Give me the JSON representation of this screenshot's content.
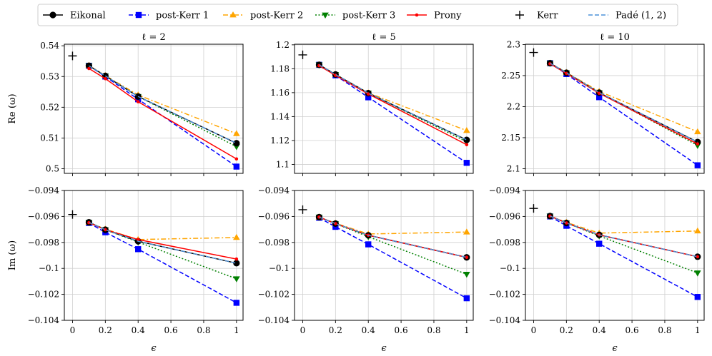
{
  "chart_data": {
    "type": "line",
    "figure_kind": "grid of 2x3 line plots",
    "xlabel": "ϵ",
    "row_ylabels": [
      "Re (ω)",
      "Im (ω)"
    ],
    "column_titles": [
      "ℓ = 2",
      "ℓ = 5",
      "ℓ = 10"
    ],
    "x_ticks": [
      "0",
      "0.2",
      "0.4",
      "0.6",
      "0.8",
      "1"
    ],
    "xlim": [
      -0.05,
      1.04
    ],
    "x": [
      0.1,
      0.2,
      0.4,
      1.0
    ],
    "legend": {
      "placement": "top",
      "entries": [
        {
          "name": "Eikonal",
          "color": "#000000",
          "marker": "circle",
          "dash": "solid"
        },
        {
          "name": "post-Kerr 1",
          "color": "#0000ff",
          "marker": "square",
          "dash": "dashed"
        },
        {
          "name": "post-Kerr 2",
          "color": "#ffa500",
          "marker": "triangle-up",
          "dash": "dashdot"
        },
        {
          "name": "post-Kerr 3",
          "color": "#008000",
          "marker": "triangle-down",
          "dash": "dotted"
        },
        {
          "name": "Prony",
          "color": "#ff0000",
          "marker": "dot",
          "dash": "solid"
        },
        {
          "name": "Kerr",
          "color": "#000000",
          "marker": "plus",
          "dash": "none"
        },
        {
          "name": "Padé (1, 2)",
          "color": "#4a90d9",
          "marker": "none",
          "dash": "dashed"
        }
      ]
    },
    "panels": [
      {
        "title": "ℓ = 2",
        "quantity": "Re (ω)",
        "ylim": [
          0.4985,
          0.5405
        ],
        "y_ticks": [
          0.5,
          0.51,
          0.52,
          0.53,
          0.54
        ],
        "y_tick_labels": [
          "0.5",
          "0.51",
          "0.52",
          "0.53",
          "0.54"
        ],
        "kerr": {
          "x": 0.0,
          "y": 0.5367
        },
        "series": [
          {
            "name": "Eikonal",
            "values": [
              0.5335,
              0.5302,
              0.5235,
              0.5083
            ]
          },
          {
            "name": "post-Kerr 1",
            "values": [
              0.5335,
              0.53,
              0.5226,
              0.5007
            ]
          },
          {
            "name": "post-Kerr 2",
            "values": [
              0.5336,
              0.5303,
              0.524,
              0.5114
            ]
          },
          {
            "name": "post-Kerr 3",
            "values": [
              0.5335,
              0.5302,
              0.5235,
              0.5072
            ]
          },
          {
            "name": "Prony",
            "values": [
              0.5326,
              0.5293,
              0.5218,
              0.5032
            ]
          },
          {
            "name": "Padé (1, 2)",
            "values": [
              0.5335,
              0.5302,
              0.5235,
              0.5083
            ]
          }
        ]
      },
      {
        "title": "ℓ = 5",
        "quantity": "Re (ω)",
        "ylim": [
          1.0925,
          1.2005
        ],
        "y_ticks": [
          1.1,
          1.12,
          1.14,
          1.16,
          1.18,
          1.2
        ],
        "y_tick_labels": [
          "1.1",
          "1.12",
          "1.14",
          "1.16",
          "1.18",
          "1.2"
        ],
        "kerr": {
          "x": 0.0,
          "y": 1.1916
        },
        "series": [
          {
            "name": "Eikonal",
            "values": [
              1.1833,
              1.1752,
              1.1596,
              1.1205
            ]
          },
          {
            "name": "post-Kerr 1",
            "values": [
              1.1833,
              1.1745,
              1.1561,
              1.1013
            ]
          },
          {
            "name": "post-Kerr 2",
            "values": [
              1.1833,
              1.1753,
              1.1598,
              1.1283
            ]
          },
          {
            "name": "post-Kerr 3",
            "values": [
              1.1833,
              1.1752,
              1.1596,
              1.119
            ]
          },
          {
            "name": "Prony",
            "values": [
              1.1826,
              1.1745,
              1.1589,
              1.1165
            ]
          },
          {
            "name": "Padé (1, 2)",
            "values": [
              1.1833,
              1.1752,
              1.1596,
              1.1205
            ]
          }
        ]
      },
      {
        "title": "ℓ = 10",
        "quantity": "Re (ω)",
        "ylim": [
          2.0925,
          2.3005
        ],
        "y_ticks": [
          2.1,
          2.15,
          2.2,
          2.25,
          2.3
        ],
        "y_tick_labels": [
          "2.1",
          "2.15",
          "2.2",
          "2.25",
          "2.3"
        ],
        "kerr": {
          "x": 0.0,
          "y": 2.2872
        },
        "series": [
          {
            "name": "Eikonal",
            "values": [
              2.27,
              2.2545,
              2.2225,
              2.143
            ]
          },
          {
            "name": "post-Kerr 1",
            "values": [
              2.27,
              2.2525,
              2.2152,
              2.1055
            ]
          },
          {
            "name": "post-Kerr 2",
            "values": [
              2.27,
              2.255,
              2.2245,
              2.1595
            ]
          },
          {
            "name": "post-Kerr 3",
            "values": [
              2.27,
              2.2545,
              2.2225,
              2.1375
            ]
          },
          {
            "name": "Prony",
            "values": [
              2.269,
              2.2535,
              2.2215,
              2.14
            ]
          },
          {
            "name": "Padé (1, 2)",
            "values": [
              2.27,
              2.2545,
              2.2225,
              2.143
            ]
          }
        ]
      },
      {
        "title": "ℓ = 2",
        "quantity": "Im (ω)",
        "ylim": [
          -0.104,
          -0.094
        ],
        "y_ticks": [
          -0.104,
          -0.102,
          -0.1,
          -0.098,
          -0.096,
          -0.094
        ],
        "y_tick_labels": [
          "−0.104",
          "−0.102",
          "−0.1",
          "−0.098",
          "−0.096",
          "−0.094"
        ],
        "kerr": {
          "x": 0.0,
          "y": -0.09585
        },
        "series": [
          {
            "name": "Eikonal",
            "values": [
              -0.09645,
              -0.09702,
              -0.09791,
              -0.0996
            ]
          },
          {
            "name": "post-Kerr 1",
            "values": [
              -0.0965,
              -0.09722,
              -0.09852,
              -0.10265
            ]
          },
          {
            "name": "post-Kerr 2",
            "values": [
              -0.09645,
              -0.09698,
              -0.09778,
              -0.09762
            ]
          },
          {
            "name": "post-Kerr 3",
            "values": [
              -0.09645,
              -0.09702,
              -0.09797,
              -0.1008
            ]
          },
          {
            "name": "Prony",
            "values": [
              -0.09648,
              -0.09702,
              -0.09778,
              -0.09928
            ]
          },
          {
            "name": "Padé (1, 2)",
            "values": [
              -0.09645,
              -0.09702,
              -0.09791,
              -0.0996
            ]
          }
        ]
      },
      {
        "title": "ℓ = 5",
        "quantity": "Im (ω)",
        "ylim": [
          -0.104,
          -0.094
        ],
        "y_ticks": [
          -0.104,
          -0.102,
          -0.1,
          -0.098,
          -0.096,
          -0.094
        ],
        "y_tick_labels": [
          "−0.104",
          "−0.102",
          "−0.1",
          "−0.098",
          "−0.096",
          "−0.094"
        ],
        "kerr": {
          "x": 0.0,
          "y": -0.09548
        },
        "series": [
          {
            "name": "Eikonal",
            "values": [
              -0.09605,
              -0.09655,
              -0.09745,
              -0.09915
            ]
          },
          {
            "name": "post-Kerr 1",
            "values": [
              -0.0961,
              -0.0968,
              -0.09815,
              -0.1023
            ]
          },
          {
            "name": "post-Kerr 2",
            "values": [
              -0.09605,
              -0.09652,
              -0.09735,
              -0.0972
            ]
          },
          {
            "name": "post-Kerr 3",
            "values": [
              -0.09605,
              -0.09656,
              -0.09756,
              -0.10045
            ]
          },
          {
            "name": "Prony",
            "values": [
              -0.09605,
              -0.09655,
              -0.09745,
              -0.09915
            ]
          },
          {
            "name": "Padé (1, 2)",
            "values": [
              -0.09605,
              -0.09655,
              -0.09745,
              -0.09915
            ]
          }
        ]
      },
      {
        "title": "ℓ = 10",
        "quantity": "Im (ω)",
        "ylim": [
          -0.104,
          -0.094
        ],
        "y_ticks": [
          -0.104,
          -0.102,
          -0.1,
          -0.098,
          -0.096,
          -0.094
        ],
        "y_tick_labels": [
          "−0.104",
          "−0.102",
          "−0.1",
          "−0.098",
          "−0.096",
          "−0.094"
        ],
        "kerr": {
          "x": 0.0,
          "y": -0.09538
        },
        "series": [
          {
            "name": "Eikonal",
            "values": [
              -0.09597,
              -0.0965,
              -0.09742,
              -0.0991
            ]
          },
          {
            "name": "post-Kerr 1",
            "values": [
              -0.096,
              -0.09672,
              -0.0981,
              -0.1022
            ]
          },
          {
            "name": "post-Kerr 2",
            "values": [
              -0.09597,
              -0.09646,
              -0.09728,
              -0.09712
            ]
          },
          {
            "name": "post-Kerr 3",
            "values": [
              -0.09597,
              -0.0965,
              -0.0975,
              -0.10035
            ]
          },
          {
            "name": "Prony",
            "values": [
              -0.09597,
              -0.0965,
              -0.09742,
              -0.0991
            ]
          },
          {
            "name": "Padé (1, 2)",
            "values": [
              -0.09597,
              -0.0965,
              -0.09742,
              -0.0991
            ]
          }
        ]
      }
    ]
  }
}
